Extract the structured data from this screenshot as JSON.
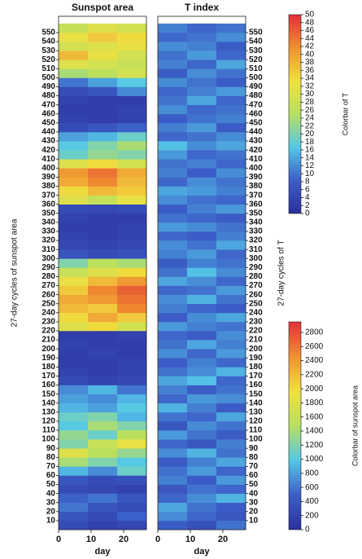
{
  "chart_data": [
    {
      "type": "heatmap",
      "title": "Sunspot area",
      "xlabel": "day",
      "ylabel": "27-day cycles of sunspot area",
      "xlim": [
        0,
        27
      ],
      "xticks": [
        0,
        10,
        20
      ],
      "ylim": [
        0,
        568
      ],
      "yticks": [
        10,
        20,
        30,
        40,
        50,
        60,
        70,
        80,
        90,
        100,
        110,
        120,
        130,
        140,
        150,
        160,
        170,
        180,
        190,
        200,
        210,
        220,
        230,
        240,
        250,
        260,
        270,
        280,
        290,
        300,
        310,
        320,
        330,
        340,
        350,
        360,
        370,
        380,
        390,
        400,
        410,
        420,
        430,
        440,
        450,
        460,
        470,
        480,
        490,
        500,
        510,
        520,
        530,
        540,
        550
      ],
      "x_bins": [
        0,
        9,
        18,
        27
      ],
      "y_bins": [
        0,
        10,
        20,
        30,
        40,
        50,
        60,
        70,
        80,
        90,
        100,
        110,
        120,
        130,
        140,
        150,
        160,
        170,
        180,
        190,
        200,
        210,
        220,
        230,
        240,
        250,
        260,
        270,
        280,
        290,
        300,
        310,
        320,
        330,
        340,
        350,
        360,
        370,
        380,
        390,
        400,
        410,
        420,
        430,
        440,
        450,
        460,
        470,
        480,
        490,
        500,
        510,
        520,
        530,
        540,
        550,
        560
      ],
      "values": [
        [
          300,
          200,
          250
        ],
        [
          400,
          300,
          500
        ],
        [
          600,
          400,
          300
        ],
        [
          500,
          600,
          400
        ],
        [
          300,
          250,
          200
        ],
        [
          400,
          300,
          350
        ],
        [
          900,
          700,
          1100
        ],
        [
          1400,
          1200,
          1000
        ],
        [
          1800,
          1500,
          1300
        ],
        [
          1200,
          1600,
          1900
        ],
        [
          1300,
          1100,
          1500
        ],
        [
          1000,
          1400,
          1200
        ],
        [
          1100,
          1200,
          900
        ],
        [
          900,
          800,
          1000
        ],
        [
          800,
          700,
          900
        ],
        [
          700,
          900,
          600
        ],
        [
          300,
          200,
          250
        ],
        [
          200,
          150,
          200
        ],
        [
          150,
          150,
          200
        ],
        [
          150,
          200,
          150
        ],
        [
          200,
          150,
          150
        ],
        [
          150,
          150,
          200
        ],
        [
          1800,
          2000,
          1700
        ],
        [
          2000,
          2300,
          2100
        ],
        [
          2200,
          2100,
          2500
        ],
        [
          2300,
          2400,
          2600
        ],
        [
          2100,
          2500,
          2700
        ],
        [
          1900,
          2200,
          2400
        ],
        [
          1600,
          1800,
          2000
        ],
        [
          1200,
          1500,
          1400
        ],
        [
          400,
          300,
          350
        ],
        [
          250,
          200,
          250
        ],
        [
          200,
          150,
          200
        ],
        [
          150,
          150,
          200
        ],
        [
          200,
          150,
          150
        ],
        [
          300,
          250,
          300
        ],
        [
          1800,
          1600,
          1900
        ],
        [
          2000,
          2200,
          2100
        ],
        [
          2300,
          2500,
          2200
        ],
        [
          2400,
          2600,
          2300
        ],
        [
          1800,
          2000,
          1700
        ],
        [
          1100,
          1300,
          1200
        ],
        [
          1000,
          1200,
          1400
        ],
        [
          800,
          900,
          1100
        ],
        [
          300,
          400,
          500
        ],
        [
          200,
          150,
          200
        ],
        [
          150,
          150,
          200
        ],
        [
          200,
          150,
          150
        ],
        [
          300,
          400,
          700
        ],
        [
          600,
          800,
          1000
        ],
        [
          1400,
          1500,
          1700
        ],
        [
          1800,
          1700,
          1600
        ],
        [
          2200,
          1900,
          1700
        ],
        [
          1700,
          1800,
          1900
        ],
        [
          1900,
          2100,
          2000
        ],
        [
          1600,
          1800,
          1700
        ]
      ],
      "colormap": [
        "#2b2f9e",
        "#3c5ec8",
        "#55c8e8",
        "#b8e060",
        "#f0e040",
        "#f09030",
        "#e0303a"
      ],
      "colorbar": {
        "label": "Colorbar of sunspot area",
        "lim": [
          0,
          2950
        ],
        "ticks": [
          0,
          200,
          400,
          600,
          800,
          1000,
          1200,
          1400,
          1600,
          1800,
          2000,
          2200,
          2400,
          2600,
          2800
        ]
      }
    },
    {
      "type": "heatmap",
      "title": "T index",
      "xlabel": "day",
      "ylabel": "27-day cycles of T",
      "xlim": [
        0,
        27
      ],
      "xticks": [
        0,
        10,
        20
      ],
      "ylim": [
        0,
        568
      ],
      "yticks": [
        10,
        20,
        30,
        40,
        50,
        60,
        70,
        80,
        90,
        100,
        110,
        120,
        130,
        140,
        150,
        160,
        170,
        180,
        190,
        200,
        210,
        220,
        230,
        240,
        250,
        260,
        270,
        280,
        290,
        300,
        310,
        320,
        330,
        340,
        350,
        360,
        370,
        380,
        390,
        400,
        410,
        420,
        430,
        440,
        450,
        460,
        470,
        480,
        490,
        500,
        510,
        520,
        530,
        540,
        550
      ],
      "x_bins": [
        0,
        9,
        18,
        27
      ],
      "y_bins": [
        0,
        10,
        20,
        30,
        40,
        50,
        60,
        70,
        80,
        90,
        100,
        110,
        120,
        130,
        140,
        150,
        160,
        170,
        180,
        190,
        200,
        210,
        220,
        230,
        240,
        250,
        260,
        270,
        280,
        290,
        300,
        310,
        320,
        330,
        340,
        350,
        360,
        370,
        380,
        390,
        400,
        410,
        420,
        430,
        440,
        450,
        460,
        470,
        480,
        490,
        500,
        510,
        520,
        530,
        540,
        550,
        560
      ],
      "values": [
        [
          8,
          6,
          10
        ],
        [
          12,
          9,
          7
        ],
        [
          14,
          10,
          8
        ],
        [
          9,
          12,
          15
        ],
        [
          7,
          10,
          9
        ],
        [
          11,
          8,
          13
        ],
        [
          10,
          13,
          9
        ],
        [
          8,
          11,
          14
        ],
        [
          12,
          15,
          10
        ],
        [
          9,
          7,
          11
        ],
        [
          13,
          10,
          8
        ],
        [
          7,
          12,
          10
        ],
        [
          10,
          9,
          14
        ],
        [
          15,
          11,
          8
        ],
        [
          9,
          13,
          12
        ],
        [
          11,
          8,
          10
        ],
        [
          14,
          16,
          9
        ],
        [
          10,
          12,
          15
        ],
        [
          8,
          11,
          9
        ],
        [
          12,
          9,
          13
        ],
        [
          10,
          14,
          11
        ],
        [
          9,
          8,
          12
        ],
        [
          13,
          11,
          10
        ],
        [
          8,
          12,
          14
        ],
        [
          11,
          9,
          8
        ],
        [
          12,
          15,
          10
        ],
        [
          9,
          10,
          13
        ],
        [
          14,
          12,
          9
        ],
        [
          10,
          16,
          12
        ],
        [
          8,
          11,
          10
        ],
        [
          11,
          13,
          9
        ],
        [
          12,
          10,
          14
        ],
        [
          9,
          8,
          11
        ],
        [
          13,
          12,
          10
        ],
        [
          10,
          9,
          8
        ],
        [
          8,
          11,
          13
        ],
        [
          12,
          10,
          9
        ],
        [
          14,
          13,
          11
        ],
        [
          9,
          12,
          10
        ],
        [
          11,
          8,
          12
        ],
        [
          10,
          11,
          9
        ],
        [
          13,
          9,
          10
        ],
        [
          16,
          12,
          14
        ],
        [
          9,
          10,
          12
        ],
        [
          11,
          13,
          8
        ],
        [
          8,
          10,
          11
        ],
        [
          12,
          9,
          10
        ],
        [
          10,
          14,
          9
        ],
        [
          9,
          11,
          13
        ],
        [
          12,
          10,
          8
        ],
        [
          8,
          12,
          10
        ],
        [
          11,
          9,
          14
        ],
        [
          10,
          13,
          9
        ],
        [
          12,
          11,
          8
        ],
        [
          9,
          10,
          12
        ],
        [
          11,
          9,
          10
        ]
      ],
      "colormap": [
        "#2b2f9e",
        "#3c5ec8",
        "#55c8e8",
        "#b8e060",
        "#f0e040",
        "#f09030",
        "#e0303a"
      ],
      "colorbar": {
        "label": "Colorbar of T",
        "lim": [
          0,
          50
        ],
        "ticks": [
          0,
          2,
          4,
          6,
          8,
          10,
          12,
          14,
          16,
          18,
          20,
          22,
          24,
          26,
          28,
          30,
          32,
          34,
          36,
          38,
          40,
          42,
          44,
          46,
          48,
          50
        ]
      }
    }
  ]
}
